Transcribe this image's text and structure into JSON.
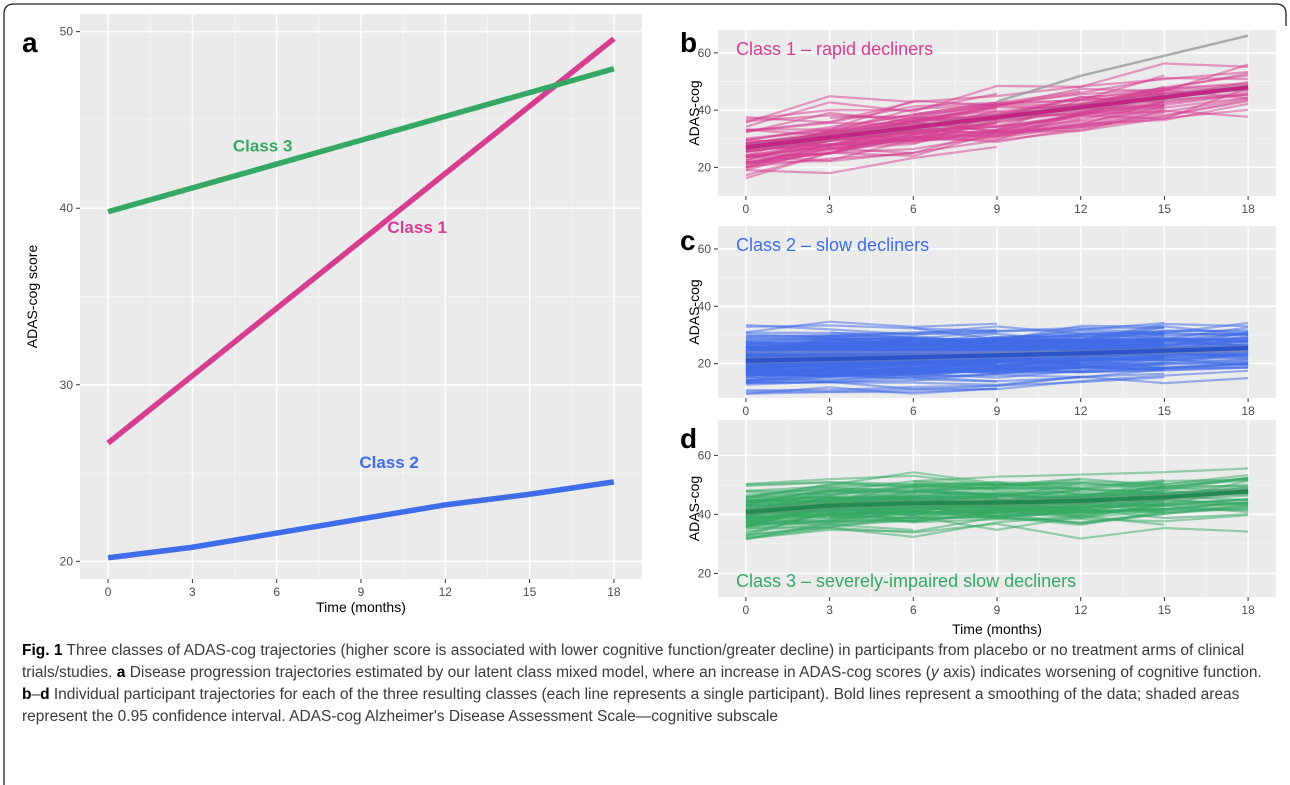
{
  "caption": {
    "fig_label": "Fig. 1",
    "text1": " Three classes of ADAS-cog trajectories (higher score is associated with lower cognitive function/greater decline) in participants from placebo or no treatment arms of clinical trials/studies. ",
    "a_label": "a",
    "text2": " Disease progression trajectories estimated by our latent class mixed model, where an increase in ADAS-cog scores (",
    "y_italic": "y",
    "text3": " axis) indicates worsening of cognitive function. ",
    "bd_label": "b",
    "bd_dash": "–",
    "bd_label2": "d",
    "text4": " Individual participant trajectories for each of the three resulting classes (each line represents a single participant). Bold lines represent a smoothing of the data; shaded areas represent the 0.95 confidence interval. ADAS-cog Alzheimer's Disease Assessment Scale—cognitive subscale"
  },
  "colors": {
    "class1": "#d63d91",
    "class2": "#3f6ce8",
    "class3": "#35a964",
    "class1_dark": "#c42483",
    "class2_dark": "#2a52c9",
    "class3_dark": "#238a4f",
    "panel_bg": "#ebebeb",
    "grid": "#ffffff"
  },
  "chart_data": [
    {
      "panel": "a",
      "type": "line",
      "title": "",
      "xlabel": "Time (months)",
      "ylabel": "ADAS-cog score",
      "x_ticks": [
        0,
        3,
        6,
        9,
        12,
        15,
        18
      ],
      "y_ticks": [
        20,
        30,
        40,
        50
      ],
      "xlim": [
        -1,
        19
      ],
      "ylim": [
        19,
        51
      ],
      "grid": true,
      "series": [
        {
          "name": "Class 1",
          "color_key": "class1",
          "x": [
            0,
            18
          ],
          "y": [
            26.7,
            49.6
          ]
        },
        {
          "name": "Class 2",
          "color_key": "class2",
          "x": [
            0,
            3,
            6,
            9,
            12,
            15,
            18
          ],
          "y": [
            20.2,
            20.8,
            21.6,
            22.4,
            23.2,
            23.8,
            24.5
          ]
        },
        {
          "name": "Class 3",
          "color_key": "class3",
          "x": [
            0,
            6,
            12,
            18
          ],
          "y": [
            39.8,
            42.5,
            45.2,
            47.9
          ]
        }
      ]
    },
    {
      "panel": "b",
      "type": "line",
      "title": "Class 1 – rapid decliners",
      "xlabel": "",
      "ylabel": "ADAS-cog",
      "x_ticks": [
        0,
        3,
        6,
        9,
        12,
        15,
        18
      ],
      "y_ticks": [
        20,
        40,
        60
      ],
      "xlim": [
        -1,
        19
      ],
      "ylim": [
        10,
        68
      ],
      "grid": true,
      "color_key": "class1",
      "smooth": {
        "x": [
          0,
          6,
          12,
          18
        ],
        "y": [
          27,
          34,
          41,
          48
        ]
      },
      "individual_lines": "many (one per participant)"
    },
    {
      "panel": "c",
      "type": "line",
      "title": "Class 2 – slow decliners",
      "xlabel": "",
      "ylabel": "ADAS-cog",
      "x_ticks": [
        0,
        3,
        6,
        9,
        12,
        15,
        18
      ],
      "y_ticks": [
        20,
        40,
        60
      ],
      "xlim": [
        -1,
        19
      ],
      "ylim": [
        8,
        68
      ],
      "grid": true,
      "color_key": "class2",
      "smooth": {
        "x": [
          0,
          6,
          12,
          18
        ],
        "y": [
          21,
          22.2,
          23.6,
          25.4
        ]
      },
      "individual_lines": "many (one per participant)"
    },
    {
      "panel": "d",
      "type": "line",
      "title": "Class 3 – severely-impaired slow decliners",
      "xlabel": "Time (months)",
      "ylabel": "ADAS-cog",
      "x_ticks": [
        0,
        3,
        6,
        9,
        12,
        15,
        18
      ],
      "y_ticks": [
        20,
        40,
        60
      ],
      "xlim": [
        -1,
        19
      ],
      "ylim": [
        12,
        72
      ],
      "grid": true,
      "color_key": "class3",
      "smooth": {
        "x": [
          0,
          3,
          6,
          9,
          12,
          15,
          18
        ],
        "y": [
          40.8,
          43.0,
          43.8,
          44.0,
          44.6,
          45.8,
          47.8
        ]
      },
      "individual_lines": "many (one per participant)"
    }
  ]
}
